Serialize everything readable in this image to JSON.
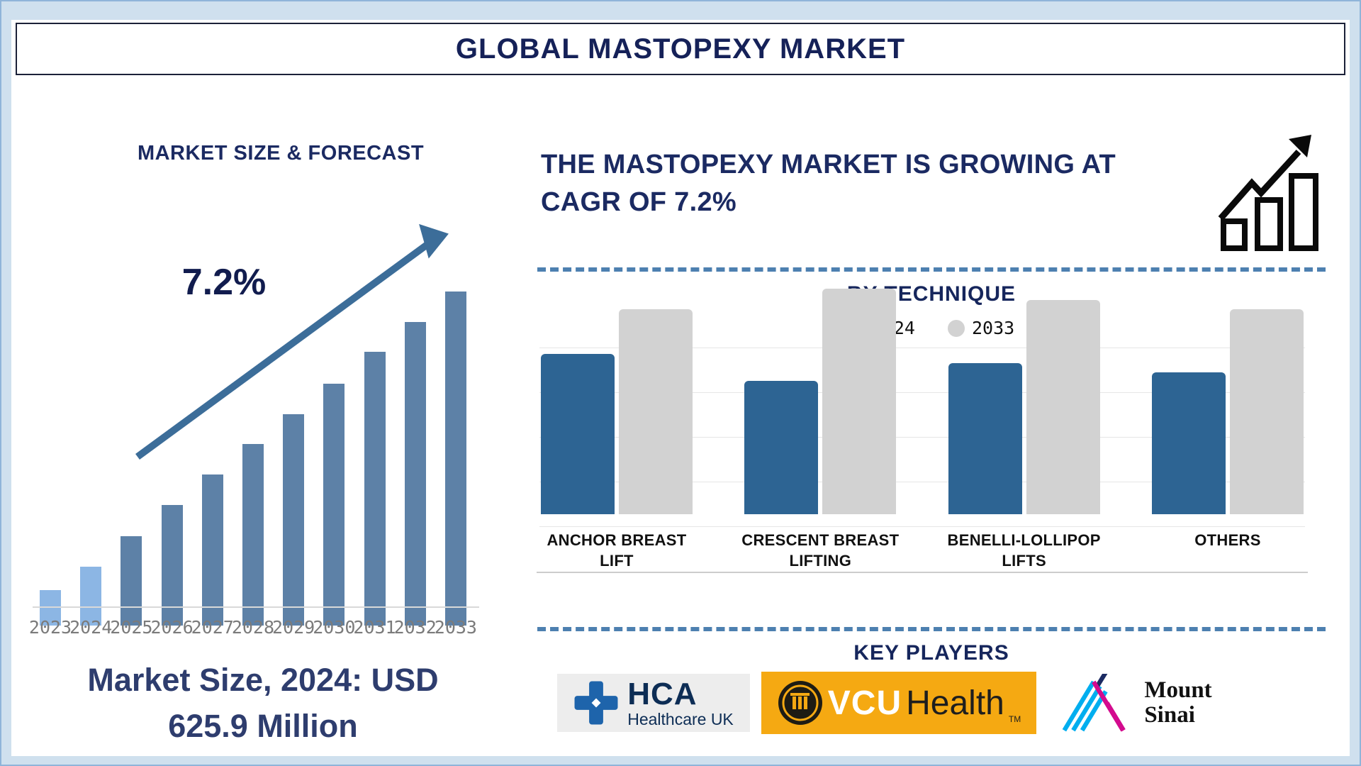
{
  "page": {
    "title": "GLOBAL MASTOPEXY MARKET"
  },
  "left_panel": {
    "section_title": "MARKET SIZE & FORECAST",
    "growth_label": "7.2%",
    "caption": {
      "line1": "Market Size, 2024: USD",
      "line2": "625.9 Million"
    }
  },
  "right_panel": {
    "headline": {
      "line1": "THE MASTOPEXY MARKET IS GROWING AT",
      "line2": "CAGR OF 7.2%"
    },
    "technique": {
      "title": "BY TECHNIQUE"
    },
    "key_players": {
      "title": "KEY PLAYERS",
      "players": [
        {
          "name": "HCA Healthcare UK",
          "text_top": "HCA",
          "text_bottom": "Healthcare UK"
        },
        {
          "name": "VCU Health",
          "text_top": "VCU",
          "text_bottom": "Health",
          "trademark": "TM"
        },
        {
          "name": "Mount Sinai",
          "text_top": "Mount",
          "text_bottom": "Sinai"
        }
      ]
    }
  },
  "colors": {
    "navy": "#1b2a62",
    "forecast_bar": "#5d81a7",
    "forecast_bar_highlight": "#8cb6e4",
    "arrow": "#3c6d99",
    "dashed_line": "#4d80b0",
    "axis_text": "#7b7b7b",
    "hca_blue": "#1e64ab",
    "vcu_gold": "#f5a912",
    "sinai_cyan": "#00aeef",
    "sinai_magenta": "#d30b8e"
  },
  "chart_data": [
    {
      "type": "bar",
      "title": "MARKET SIZE & FORECAST",
      "categories": [
        "2023",
        "2024",
        "2025",
        "2026",
        "2027",
        "2028",
        "2029",
        "2030",
        "2031",
        "2032",
        "2033"
      ],
      "values_relative": [
        10.6,
        17.6,
        26.8,
        36.1,
        45.2,
        54.4,
        63.3,
        72.4,
        81.9,
        90.9,
        100
      ],
      "values_note": "no y-axis shown; values are bar heights as percent of the 2033 bar",
      "known_value": {
        "year": "2024",
        "amount_usd_million": 625.9
      },
      "cagr_percent": 7.2,
      "annotation": "7.2%",
      "highlight_categories": [
        "2023",
        "2024"
      ],
      "grid": false,
      "legend": false
    },
    {
      "type": "bar",
      "title": "BY TECHNIQUE",
      "categories": [
        [
          "ANCHOR BREAST",
          "LIFT"
        ],
        [
          "CRESCENT BREAST",
          "LIFTING"
        ],
        [
          "BENELLI-LOLLIPOP",
          "LIFTS"
        ],
        [
          "OTHERS"
        ]
      ],
      "series": [
        {
          "name": "2024",
          "color": "#2d6493",
          "values_relative": [
            71,
            59,
            67,
            63
          ]
        },
        {
          "name": "2033",
          "color": "#d2d2d2",
          "values_relative": [
            91,
            100,
            95,
            91
          ]
        }
      ],
      "values_note": "no y-axis shown; values are bar heights as percent of tallest bar (Crescent 2033)",
      "grid": true,
      "legend_position": "top"
    }
  ]
}
